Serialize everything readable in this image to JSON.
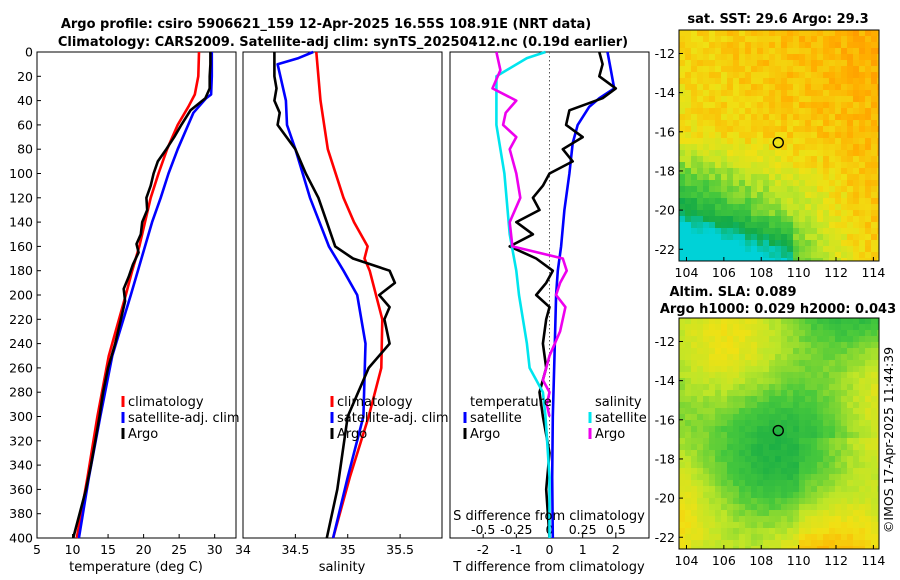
{
  "figure": {
    "title_line1": "Argo profile: csiro 5906621_159 12-Apr-2025 16.55S 108.91E (NRT data)",
    "title_line2": "Climatology: CARS2009. Satellite-adj clim: synTS_20250412.nc (0.19d earlier)",
    "credit": "©IMOS 17-Apr-2025 11:44:39"
  },
  "colors": {
    "climatology": "#ff0000",
    "satellite": "#0000ff",
    "argo": "#000000",
    "salinity_satellite": "#00e5ee",
    "salinity_argo": "#ee00ee"
  },
  "chart_data": [
    {
      "id": "temperature_profile",
      "type": "line",
      "xlabel": "temperature (deg C)",
      "ylabel": "",
      "xlim": [
        5,
        33
      ],
      "ylim": [
        400,
        0
      ],
      "xticks": [
        "5",
        "10",
        "15",
        "20",
        "25",
        "30"
      ],
      "yticks": [
        "0",
        "20",
        "40",
        "60",
        "80",
        "100",
        "120",
        "140",
        "160",
        "180",
        "200",
        "220",
        "240",
        "260",
        "280",
        "300",
        "320",
        "340",
        "360",
        "380",
        "400"
      ],
      "legend": [
        "climatology",
        "satellite-adj. clim",
        "Argo"
      ],
      "series": [
        {
          "name": "climatology",
          "color_key": "climatology",
          "depth": [
            0,
            20,
            35,
            45,
            60,
            80,
            100,
            120,
            140,
            160,
            180,
            200,
            250,
            300,
            350,
            400
          ],
          "values": [
            27.8,
            27.7,
            27.2,
            26.3,
            24.8,
            23.3,
            22.1,
            21.0,
            20.2,
            19.4,
            18.4,
            17.5,
            15.1,
            13.5,
            12.1,
            10.6
          ]
        },
        {
          "name": "satellite-adj. clim",
          "color_key": "satellite",
          "depth": [
            0,
            20,
            35,
            38,
            50,
            80,
            100,
            120,
            140,
            160,
            180,
            200,
            250,
            300,
            350,
            400
          ],
          "values": [
            29.6,
            29.6,
            29.5,
            28.8,
            27.0,
            24.8,
            23.5,
            22.4,
            21.2,
            20.2,
            19.2,
            18.2,
            15.6,
            13.9,
            12.3,
            10.9
          ]
        },
        {
          "name": "Argo",
          "color_key": "argo",
          "depth": [
            0,
            10,
            20,
            30,
            38,
            48,
            60,
            70,
            80,
            90,
            100,
            110,
            120,
            130,
            140,
            150,
            158,
            165,
            175,
            185,
            195,
            205,
            220,
            240,
            260,
            280,
            300,
            320,
            340,
            360,
            380,
            400
          ],
          "values": [
            29.4,
            29.4,
            29.3,
            29.3,
            28.7,
            26.6,
            25.3,
            24.3,
            23.2,
            22.0,
            21.4,
            21.0,
            20.4,
            20.5,
            19.8,
            19.6,
            19.0,
            19.3,
            18.5,
            17.9,
            17.2,
            17.4,
            16.8,
            16.0,
            15.0,
            14.3,
            13.8,
            13.2,
            12.6,
            11.9,
            11.0,
            10.1
          ]
        }
      ]
    },
    {
      "id": "salinity_profile",
      "type": "line",
      "xlabel": "salinity",
      "xlim": [
        34,
        35.9
      ],
      "ylim": [
        400,
        0
      ],
      "xticks": [
        "34",
        "34.5",
        "35",
        "35.5"
      ],
      "legend": [
        "climatology",
        "satellite-adj. clim",
        "Argo"
      ],
      "series": [
        {
          "name": "climatology",
          "color_key": "climatology",
          "depth": [
            0,
            40,
            80,
            120,
            140,
            160,
            170,
            180,
            220,
            260,
            300,
            350,
            400
          ],
          "values": [
            34.7,
            34.74,
            34.81,
            34.96,
            35.06,
            35.19,
            35.16,
            35.21,
            35.33,
            35.32,
            35.2,
            35.02,
            34.86
          ]
        },
        {
          "name": "satellite-adj. clim",
          "color_key": "satellite",
          "depth": [
            0,
            5,
            10,
            40,
            60,
            80,
            120,
            160,
            180,
            200,
            240,
            300,
            350,
            400
          ],
          "values": [
            34.67,
            34.53,
            34.33,
            34.41,
            34.42,
            34.5,
            34.64,
            34.82,
            34.96,
            35.09,
            35.17,
            35.15,
            35.0,
            34.86
          ]
        },
        {
          "name": "Argo",
          "color_key": "argo",
          "depth": [
            0,
            10,
            20,
            30,
            40,
            50,
            60,
            80,
            100,
            120,
            140,
            160,
            170,
            180,
            190,
            200,
            210,
            220,
            240,
            260,
            280,
            300,
            330,
            360,
            400
          ],
          "values": [
            34.3,
            34.3,
            34.3,
            34.32,
            34.3,
            34.35,
            34.33,
            34.5,
            34.6,
            34.72,
            34.8,
            34.88,
            35.05,
            35.4,
            35.45,
            35.3,
            35.4,
            35.35,
            35.4,
            35.2,
            35.1,
            35.0,
            34.95,
            34.9,
            34.8
          ]
        }
      ]
    },
    {
      "id": "difference_profile",
      "type": "line",
      "xlabel": "T difference from climatology",
      "xlabel_top": "S difference from climatology",
      "xlim_T": [
        -3,
        3
      ],
      "xlim_S": [
        -0.75,
        0.75
      ],
      "ylim": [
        400,
        0
      ],
      "xticks_T": [
        "-2",
        "-1",
        "0",
        "1",
        "2"
      ],
      "xticks_S": [
        "-0.5",
        "-0.25",
        "0",
        "0.25",
        "0.5"
      ],
      "legend_headers": [
        "temperature",
        "salinity"
      ],
      "legend_temperature": [
        "satellite",
        "Argo"
      ],
      "legend_salinity": [
        "satellite",
        "Argo"
      ],
      "series": [
        {
          "name": "temperature satellite",
          "color_key": "satellite",
          "depth": [
            0,
            15,
            30,
            38,
            45,
            60,
            75,
            100,
            130,
            160,
            180,
            200,
            250,
            300,
            350,
            400
          ],
          "values": [
            1.75,
            1.85,
            1.95,
            1.5,
            1.2,
            0.85,
            0.7,
            0.6,
            0.45,
            0.35,
            0.25,
            0.2,
            0.15,
            0.1,
            0.08,
            0.1
          ]
        },
        {
          "name": "temperature Argo",
          "color_key": "argo",
          "depth": [
            0,
            10,
            20,
            30,
            38,
            48,
            60,
            70,
            80,
            90,
            100,
            110,
            120,
            130,
            140,
            150,
            160,
            170,
            180,
            190,
            200,
            210,
            220,
            240,
            260,
            280,
            300,
            330,
            360,
            400
          ],
          "values": [
            1.5,
            1.6,
            1.5,
            2.0,
            1.6,
            0.6,
            0.5,
            1.0,
            0.4,
            0.7,
            0.0,
            -0.2,
            -0.5,
            -0.3,
            -1.0,
            -0.5,
            -1.2,
            -0.4,
            0.1,
            -0.1,
            -0.4,
            0.0,
            -0.1,
            -0.2,
            -0.1,
            -0.3,
            -0.2,
            0.0,
            -0.1,
            0.0
          ]
        },
        {
          "name": "salinity satellite",
          "color_key": "salinity_satellite",
          "depth": [
            0,
            5,
            20,
            60,
            100,
            150,
            180,
            200,
            240,
            260,
            280,
            300,
            350,
            400
          ],
          "values": [
            -0.03,
            -0.17,
            -0.4,
            -0.4,
            -0.34,
            -0.3,
            -0.25,
            -0.23,
            -0.17,
            -0.15,
            -0.05,
            -0.03,
            0.0,
            0.0
          ]
        },
        {
          "name": "salinity Argo",
          "color_key": "salinity_argo",
          "depth": [
            0,
            15,
            30,
            40,
            50,
            60,
            70,
            80,
            100,
            120,
            140,
            160,
            170,
            180,
            190,
            200,
            210,
            230,
            250,
            270,
            280,
            290,
            300
          ],
          "values": [
            -0.4,
            -0.37,
            -0.43,
            -0.25,
            -0.33,
            -0.35,
            -0.25,
            -0.3,
            -0.25,
            -0.22,
            -0.3,
            -0.28,
            0.1,
            0.13,
            0.08,
            0.05,
            0.12,
            0.08,
            0.0,
            -0.05,
            0.0,
            -0.02,
            0.0
          ]
        }
      ]
    },
    {
      "id": "sst_map",
      "type": "heatmap",
      "title": "sat. SST: 29.6 Argo: 29.3",
      "xticks": [
        "104",
        "106",
        "108",
        "110",
        "112",
        "114"
      ],
      "yticks": [
        "-12",
        "-14",
        "-16",
        "-18",
        "-20",
        "-22"
      ],
      "xlim": [
        103.6,
        114.3
      ],
      "ylim": [
        -22.6,
        -10.8
      ],
      "marker": {
        "lon": 108.91,
        "lat": -16.55
      }
    },
    {
      "id": "sla_map",
      "type": "heatmap",
      "title": "Altim. SLA: 0.089",
      "subtitle": "Argo h1000: 0.029 h2000: 0.043",
      "xticks": [
        "104",
        "106",
        "108",
        "110",
        "112",
        "114"
      ],
      "yticks": [
        "-12",
        "-14",
        "-16",
        "-18",
        "-20",
        "-22"
      ],
      "xlim": [
        103.6,
        114.3
      ],
      "ylim": [
        -22.6,
        -10.8
      ],
      "marker": {
        "lon": 108.91,
        "lat": -16.55
      }
    }
  ]
}
